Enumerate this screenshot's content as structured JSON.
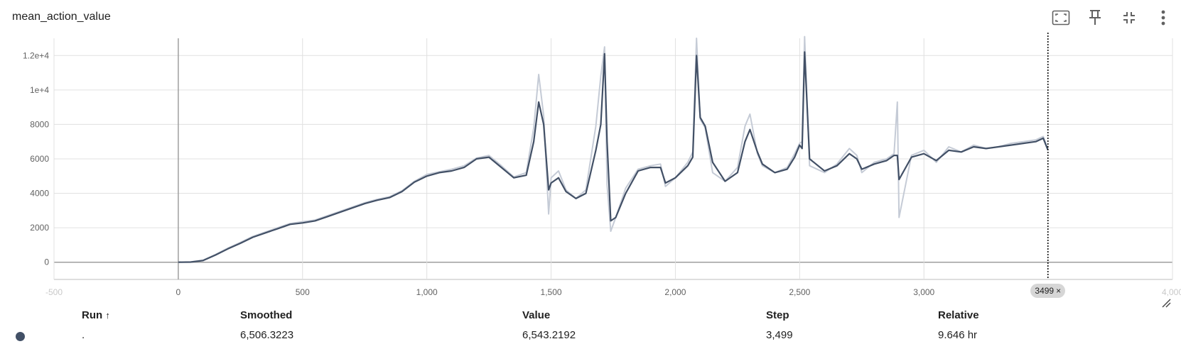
{
  "card": {
    "title": "mean_action_value",
    "toolbar": [
      {
        "icon": "fit-domain-icon",
        "label": "Fit domain to data"
      },
      {
        "icon": "pin-icon",
        "label": "Pin card"
      },
      {
        "icon": "collapse-icon",
        "label": "Exit fullscreen"
      },
      {
        "icon": "more-vert-icon",
        "label": "More"
      }
    ]
  },
  "chart_data": {
    "type": "line",
    "title": "mean_action_value",
    "xlabel": "",
    "ylabel": "",
    "xlim": [
      -500,
      4000
    ],
    "ylim": [
      -1000,
      13000
    ],
    "x_ticks": [
      {
        "v": -500,
        "label": "-500"
      },
      {
        "v": 0,
        "label": "0"
      },
      {
        "v": 500,
        "label": "500"
      },
      {
        "v": 1000,
        "label": "1,000"
      },
      {
        "v": 1500,
        "label": "1,500"
      },
      {
        "v": 2000,
        "label": "2,000"
      },
      {
        "v": 2500,
        "label": "2,500"
      },
      {
        "v": 3000,
        "label": "3,000"
      },
      {
        "v": 4000,
        "label": "4,000"
      }
    ],
    "y_ticks": [
      {
        "v": 0,
        "label": "0"
      },
      {
        "v": 2000,
        "label": "2000"
      },
      {
        "v": 4000,
        "label": "4000"
      },
      {
        "v": 6000,
        "label": "6000"
      },
      {
        "v": 8000,
        "label": "8000"
      },
      {
        "v": 10000,
        "label": "1e+4"
      },
      {
        "v": 12000,
        "label": "1.2e+4"
      }
    ],
    "grid": true,
    "cursor_step": 3499,
    "series": [
      {
        "role": "raw",
        "color": "#c5cbd6",
        "x": [
          0,
          50,
          100,
          150,
          200,
          250,
          300,
          350,
          400,
          450,
          500,
          550,
          600,
          650,
          700,
          750,
          800,
          850,
          900,
          950,
          1000,
          1050,
          1100,
          1150,
          1200,
          1250,
          1300,
          1350,
          1400,
          1430,
          1450,
          1470,
          1490,
          1500,
          1530,
          1560,
          1600,
          1640,
          1680,
          1700,
          1715,
          1725,
          1740,
          1760,
          1800,
          1850,
          1900,
          1940,
          1960,
          2000,
          2050,
          2070,
          2085,
          2100,
          2120,
          2150,
          2200,
          2250,
          2280,
          2300,
          2330,
          2350,
          2400,
          2450,
          2480,
          2500,
          2510,
          2520,
          2540,
          2600,
          2650,
          2700,
          2730,
          2750,
          2800,
          2850,
          2880,
          2893,
          2900,
          2950,
          3000,
          3050,
          3100,
          3150,
          3200,
          3250,
          3300,
          3350,
          3400,
          3450,
          3480,
          3499
        ],
        "values": [
          0,
          20,
          120,
          450,
          820,
          1150,
          1500,
          1750,
          2000,
          2250,
          2350,
          2450,
          2700,
          2950,
          3200,
          3450,
          3650,
          3800,
          4150,
          4700,
          5100,
          5250,
          5400,
          5600,
          6050,
          6200,
          5600,
          4950,
          5200,
          7800,
          10900,
          8500,
          2800,
          4900,
          5300,
          4200,
          3700,
          4200,
          7900,
          10800,
          12500,
          4500,
          1800,
          2600,
          4300,
          5400,
          5600,
          5700,
          4400,
          4900,
          5800,
          6400,
          13000,
          8300,
          7800,
          5200,
          4700,
          5500,
          7900,
          8600,
          6300,
          5600,
          5200,
          5500,
          6300,
          6900,
          7000,
          13100,
          5600,
          5200,
          5700,
          6600,
          6200,
          5200,
          5800,
          6000,
          6300,
          9300,
          2600,
          6200,
          6500,
          5800,
          6700,
          6400,
          6800,
          6600,
          6700,
          6900,
          7000,
          7100,
          7300,
          6550
        ]
      },
      {
        "role": "smoothed",
        "color": "#425066",
        "x": [
          0,
          50,
          100,
          150,
          200,
          250,
          300,
          350,
          400,
          450,
          500,
          550,
          600,
          650,
          700,
          750,
          800,
          850,
          900,
          950,
          1000,
          1050,
          1100,
          1150,
          1200,
          1250,
          1300,
          1350,
          1400,
          1430,
          1450,
          1470,
          1490,
          1500,
          1530,
          1560,
          1600,
          1640,
          1680,
          1700,
          1715,
          1725,
          1740,
          1760,
          1800,
          1850,
          1900,
          1940,
          1960,
          2000,
          2050,
          2070,
          2085,
          2100,
          2120,
          2150,
          2200,
          2250,
          2280,
          2300,
          2330,
          2350,
          2400,
          2450,
          2480,
          2500,
          2510,
          2520,
          2540,
          2600,
          2650,
          2700,
          2730,
          2750,
          2800,
          2850,
          2880,
          2893,
          2900,
          2950,
          3000,
          3050,
          3100,
          3150,
          3200,
          3250,
          3300,
          3350,
          3400,
          3450,
          3480,
          3499
        ],
        "values": [
          0,
          10,
          100,
          420,
          780,
          1100,
          1450,
          1700,
          1950,
          2200,
          2280,
          2400,
          2650,
          2900,
          3150,
          3400,
          3600,
          3750,
          4100,
          4650,
          5000,
          5200,
          5300,
          5500,
          6000,
          6100,
          5500,
          4900,
          5050,
          7000,
          9300,
          8000,
          4200,
          4600,
          4900,
          4100,
          3700,
          4000,
          6500,
          8000,
          12100,
          7000,
          2400,
          2600,
          4000,
          5300,
          5500,
          5500,
          4600,
          4900,
          5600,
          6100,
          12000,
          8400,
          7900,
          5800,
          4700,
          5200,
          7000,
          7700,
          6400,
          5700,
          5200,
          5400,
          6100,
          6800,
          6600,
          12200,
          6000,
          5300,
          5600,
          6300,
          6000,
          5400,
          5700,
          5900,
          6200,
          6200,
          4800,
          6100,
          6300,
          5900,
          6500,
          6400,
          6700,
          6600,
          6700,
          6800,
          6900,
          7000,
          7200,
          6506
        ]
      }
    ],
    "run_color": "#425066"
  },
  "step_chip": {
    "label": "3499",
    "close_glyph": "×"
  },
  "table": {
    "headers": {
      "run": "Run",
      "sort_glyph": "↑",
      "smoothed": "Smoothed",
      "value": "Value",
      "step": "Step",
      "relative": "Relative"
    },
    "row": {
      "run": ".",
      "smoothed": "6,506.3223",
      "value": "6,543.2192",
      "step": "3,499",
      "relative": "9.646 hr"
    }
  }
}
